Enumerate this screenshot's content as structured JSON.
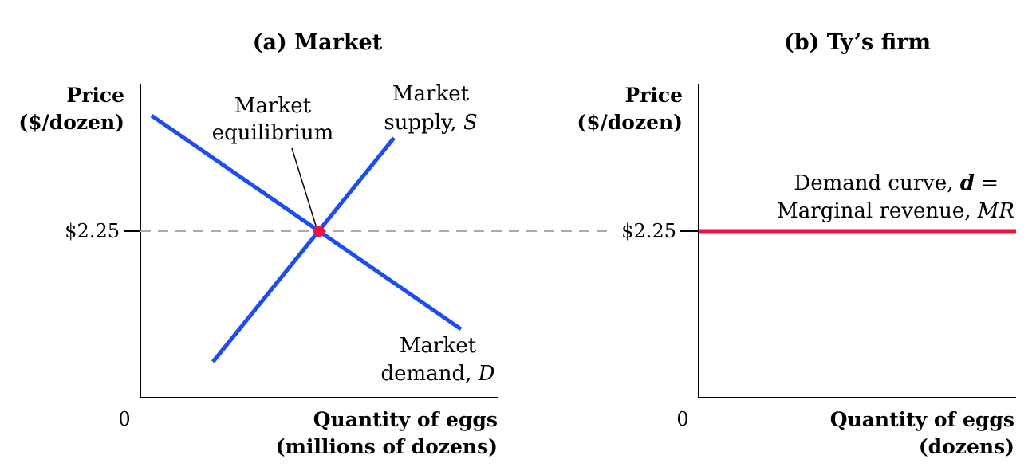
{
  "panels": {
    "market": {
      "title": "(a) Market",
      "y_axis_label": [
        "Price",
        "($/dozen)"
      ],
      "x_axis_label": [
        "Quantity of eggs",
        "(millions of dozens)"
      ],
      "origin_label": "0",
      "price_tick": "$2.25",
      "equilibrium_label": [
        "Market",
        "equilibrium"
      ],
      "supply_label": {
        "line1": "Market",
        "line2_prefix": "supply, ",
        "line2_symbol": "S"
      },
      "demand_label": {
        "line1": "Market",
        "line2_prefix": "demand, ",
        "line2_symbol": "D"
      }
    },
    "firm": {
      "title": "(b) Ty’s firm",
      "y_axis_label": [
        "Price",
        "($/dozen)"
      ],
      "x_axis_label": [
        "Quantity of eggs",
        "(dozens)"
      ],
      "origin_label": "0",
      "price_tick": "$2.25",
      "curve_label": {
        "line1_prefix": "Demand curve, ",
        "line1_symbol": "d",
        "line1_suffix": " =",
        "line2_prefix": "Marginal revenue, ",
        "line2_symbol": "MR"
      }
    }
  },
  "colors": {
    "supply_demand": "#1f4cf0",
    "equilibrium_point": "#ee1144",
    "firm_demand": "#ee1144",
    "dashed_line": "#aaaaaa",
    "axes": "#000000"
  }
}
